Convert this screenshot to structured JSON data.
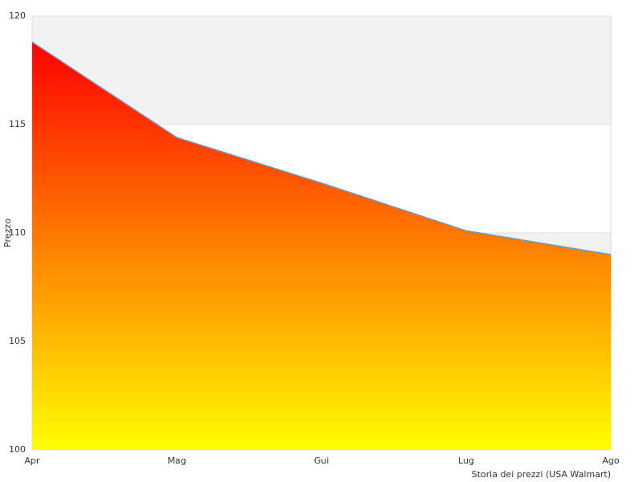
{
  "chart_data": {
    "type": "area",
    "x_label": "Storia dei prezzi (USA Walmart)",
    "y_label": "Prezzo",
    "categories": [
      "Apr",
      "Mag",
      "Gui",
      "Lug",
      "Ago"
    ],
    "values": [
      118.8,
      114.4,
      112.3,
      110.1,
      109.0
    ],
    "line_color": "#5b9bd5",
    "gradient": [
      "#ff0000",
      "#ffff00"
    ],
    "band_color": "#f2f2f2",
    "ylim": [
      100,
      120
    ],
    "yticks": [
      100,
      105,
      110,
      115,
      120
    ],
    "grid": true
  }
}
